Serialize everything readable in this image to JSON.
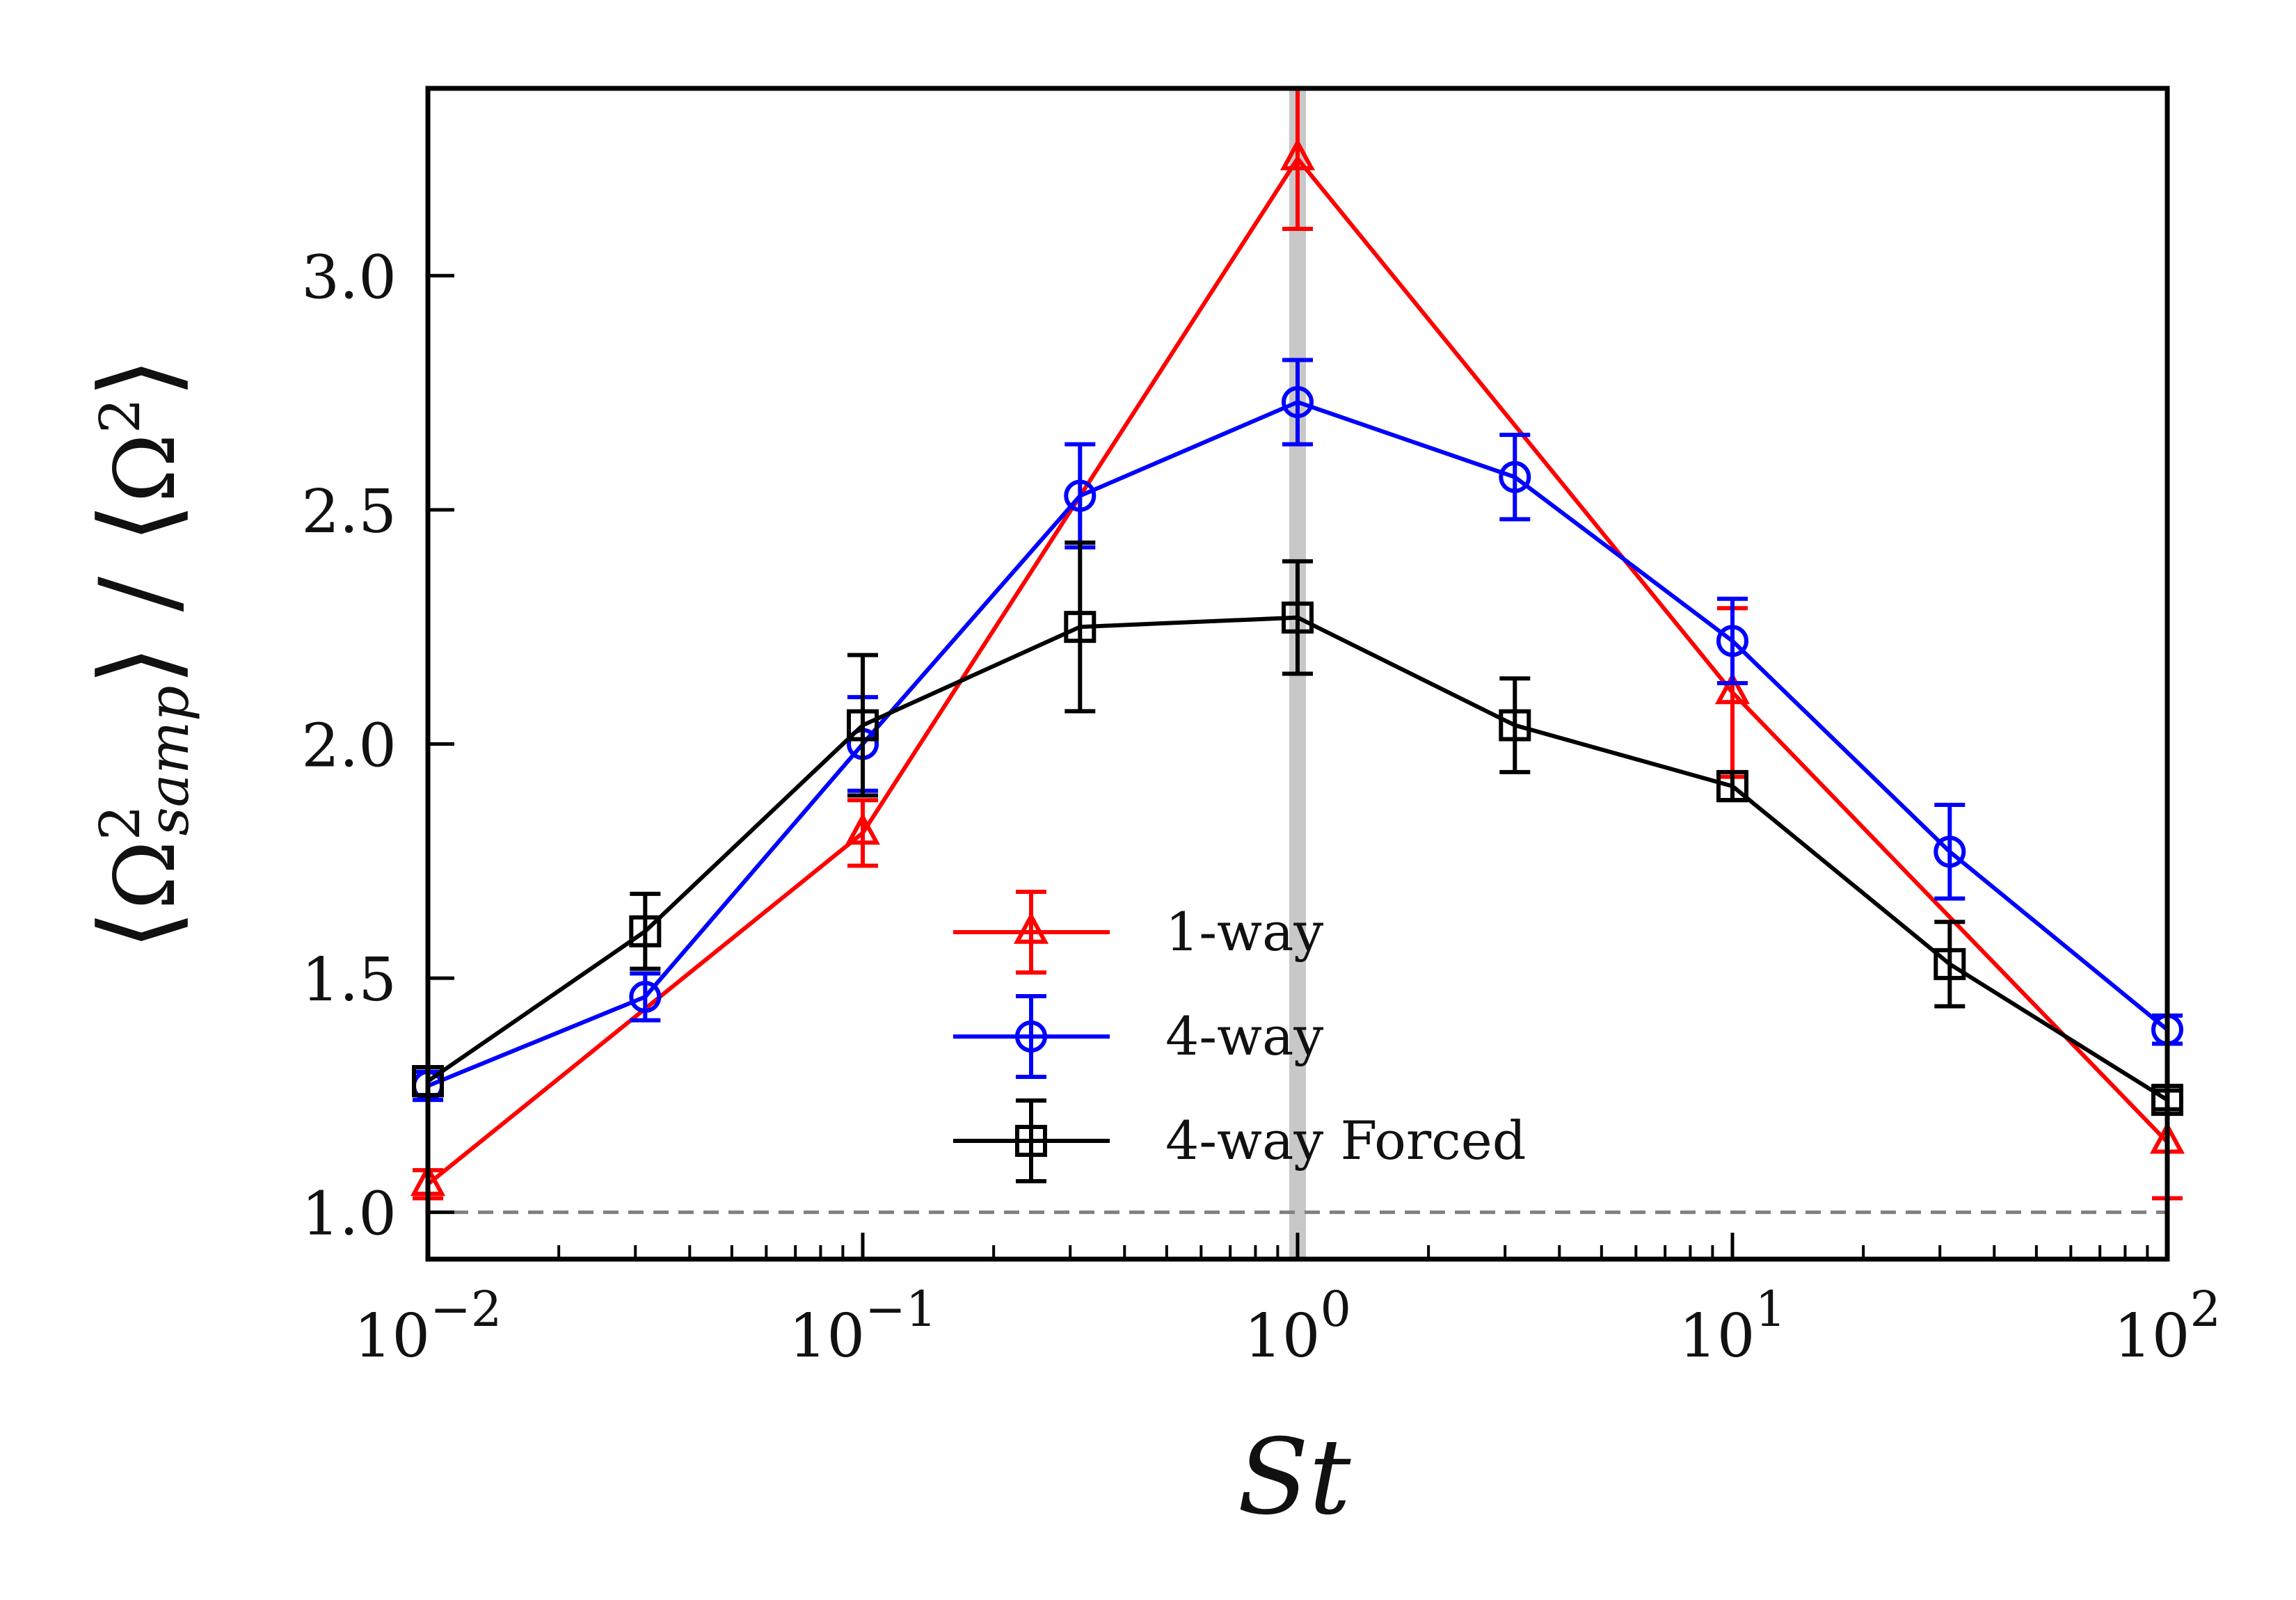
{
  "chart_data": {
    "type": "line",
    "title": "",
    "xscale": "log",
    "xlabel": "St",
    "ylabel": "⟨Ω²samp⟩ / ⟨Ω²⟩",
    "ylabel_parts": {
      "omega": "Ω",
      "sup": "2",
      "sub": "samp"
    },
    "xlim": [
      0.01,
      100
    ],
    "ylim": [
      0.9,
      3.4
    ],
    "x_ticks": [
      {
        "value": 0.01,
        "base": "10",
        "exp": "−2"
      },
      {
        "value": 0.1,
        "base": "10",
        "exp": "−1"
      },
      {
        "value": 1,
        "base": "10",
        "exp": "0"
      },
      {
        "value": 10,
        "base": "10",
        "exp": "1"
      },
      {
        "value": 100,
        "base": "10",
        "exp": "2"
      }
    ],
    "y_ticks": [
      {
        "value": 1.0,
        "label": "1.0"
      },
      {
        "value": 1.5,
        "label": "1.5"
      },
      {
        "value": 2.0,
        "label": "2.0"
      },
      {
        "value": 2.5,
        "label": "2.5"
      },
      {
        "value": 3.0,
        "label": "3.0"
      }
    ],
    "reference_line": {
      "y": 1.0,
      "style": "dashed",
      "color": "#808080"
    },
    "highlight_x": {
      "x": 1,
      "color": "#c8c8c8"
    },
    "legend_position": "lower-center",
    "series": [
      {
        "name": "1-way",
        "color": "#ff0000",
        "marker": "triangle",
        "x": [
          0.01,
          0.1,
          1,
          10,
          100
        ],
        "values": [
          1.06,
          1.81,
          3.25,
          2.11,
          1.15
        ],
        "errors": [
          0.03,
          0.07,
          0.15,
          0.18,
          0.12
        ]
      },
      {
        "name": "4-way",
        "color": "#0000ff",
        "marker": "circle",
        "x": [
          0.01,
          0.0316,
          0.1,
          0.316,
          1,
          3.16,
          10,
          31.6,
          100
        ],
        "values": [
          1.27,
          1.46,
          2.0,
          2.53,
          2.73,
          2.57,
          2.22,
          1.77,
          1.39
        ],
        "errors": [
          0.03,
          0.05,
          0.1,
          0.11,
          0.09,
          0.09,
          0.09,
          0.1,
          0.03
        ]
      },
      {
        "name": "4-way Forced",
        "color": "#000000",
        "marker": "square",
        "x": [
          0.01,
          0.0316,
          0.1,
          0.316,
          1,
          3.16,
          10,
          31.6,
          100
        ],
        "values": [
          1.28,
          1.6,
          2.04,
          2.25,
          2.27,
          2.04,
          1.91,
          1.53,
          1.24
        ],
        "errors": [
          0.03,
          0.08,
          0.15,
          0.18,
          0.12,
          0.1,
          0.03,
          0.09,
          0.02
        ]
      }
    ]
  }
}
